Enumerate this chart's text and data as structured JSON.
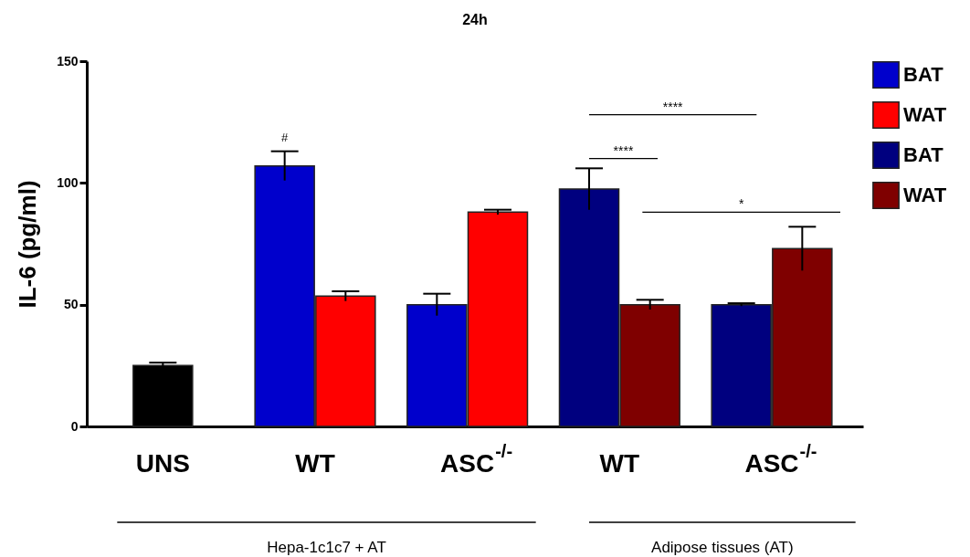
{
  "chart_data": {
    "type": "bar",
    "title": "24h",
    "ylabel": "IL-6 (pg/ml)",
    "categories": [
      "UNS",
      "WT",
      "ASC$^{-/-}$",
      "WT",
      "ASC$^{-/-}$"
    ],
    "ylim": [
      0,
      150
    ],
    "yticks": [
      0,
      50,
      100,
      150
    ],
    "legend": "top right",
    "grid": false,
    "series": [
      {
        "color": "#000000",
        "values": [
          25,
          null,
          null,
          null,
          null
        ],
        "errors": [
          1.2,
          null,
          null,
          null,
          null
        ]
      },
      {
        "name": "BAT",
        "color": "#0000cc",
        "values": [
          null,
          107,
          50,
          null,
          null
        ],
        "errors": [
          null,
          6,
          4.5,
          null,
          null
        ]
      },
      {
        "name": "WAT",
        "color": "#ff0000",
        "values": [
          null,
          53.5,
          88,
          null,
          null
        ],
        "errors": [
          null,
          2,
          1,
          null,
          null
        ]
      },
      {
        "name": "BAT",
        "color": "#00007f",
        "values": [
          null,
          null,
          null,
          97.5,
          50
        ],
        "errors": [
          null,
          null,
          null,
          8.5,
          0.6
        ]
      },
      {
        "name": "WAT",
        "color": "#7f0000",
        "values": [
          null,
          null,
          null,
          50,
          73
        ],
        "errors": [
          null,
          null,
          null,
          2,
          9
        ]
      }
    ],
    "annotations": [
      "#",
      "****",
      "****",
      "*",
      "Hepa-1c1c7 + AT",
      "Adipose tissues (AT)"
    ]
  }
}
